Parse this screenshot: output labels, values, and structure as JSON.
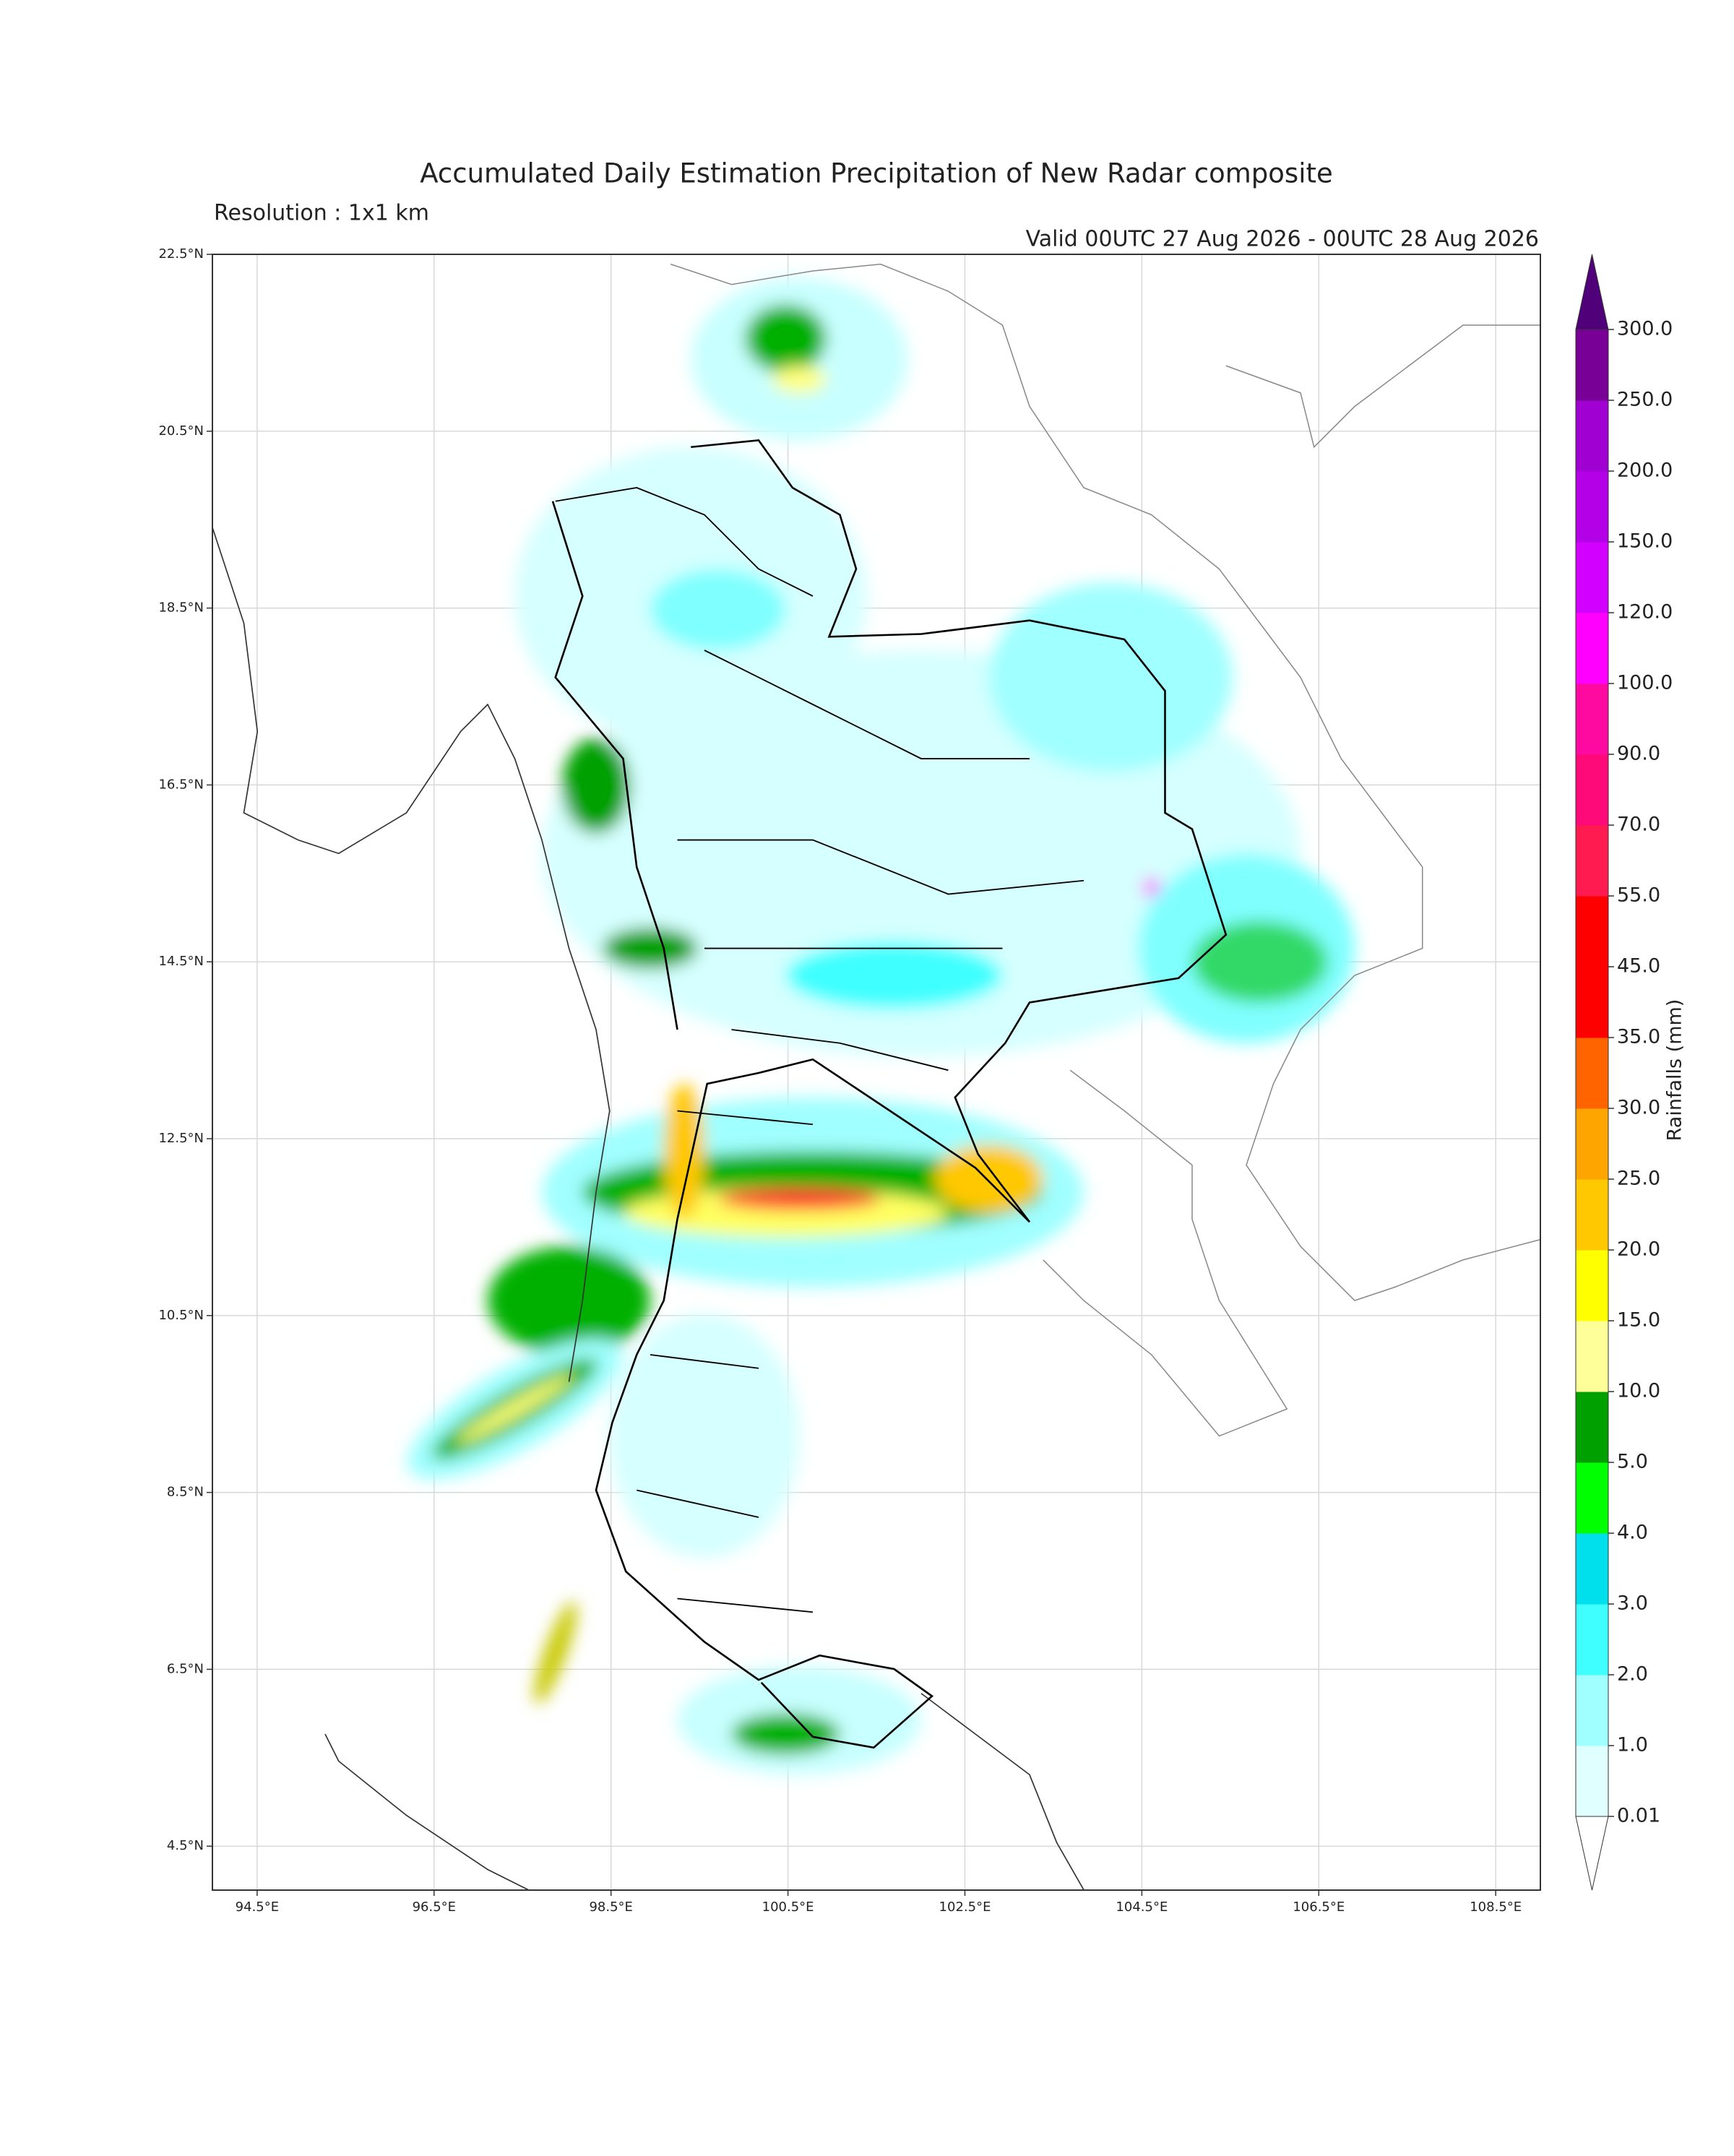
{
  "header": {
    "title": "Accumulated Daily Estimation Precipitation of New Radar composite",
    "resolution": "Resolution : 1x1 km",
    "valid": "Valid 00UTC 27 Aug 2026 - 00UTC 28 Aug 2026"
  },
  "map": {
    "lat_labels": [
      "22.5°N",
      "20.5°N",
      "18.5°N",
      "16.5°N",
      "14.5°N",
      "12.5°N",
      "10.5°N",
      "8.5°N",
      "6.5°N",
      "4.5°N"
    ],
    "lon_labels": [
      "94.5°E",
      "96.5°E",
      "98.5°E",
      "100.5°E",
      "102.5°E",
      "104.5°E",
      "106.5°E",
      "108.5°E"
    ]
  },
  "colorbar": {
    "label": "Rainfalls (mm)",
    "levels": [
      "0.01",
      "1.0",
      "2.0",
      "3.0",
      "4.0",
      "5.0",
      "10.0",
      "15.0",
      "20.0",
      "25.0",
      "30.0",
      "35.0",
      "45.0",
      "55.0",
      "70.0",
      "90.0",
      "100.0",
      "120.0",
      "150.0",
      "200.0",
      "250.0",
      "300.0"
    ],
    "colors": [
      "#e0ffff",
      "#a0ffff",
      "#40ffff",
      "#00e0ec",
      "#00ff00",
      "#00a000",
      "#ffff99",
      "#ffff00",
      "#ffc800",
      "#ffa500",
      "#ff6400",
      "#ff0000",
      "#ff0000",
      "#ff1a50",
      "#ff0a78",
      "#ff0aa0",
      "#ff00ff",
      "#d200ff",
      "#b400e6",
      "#a000d2",
      "#780096"
    ],
    "under_color": "#ffffff",
    "over_color": "#500078"
  }
}
